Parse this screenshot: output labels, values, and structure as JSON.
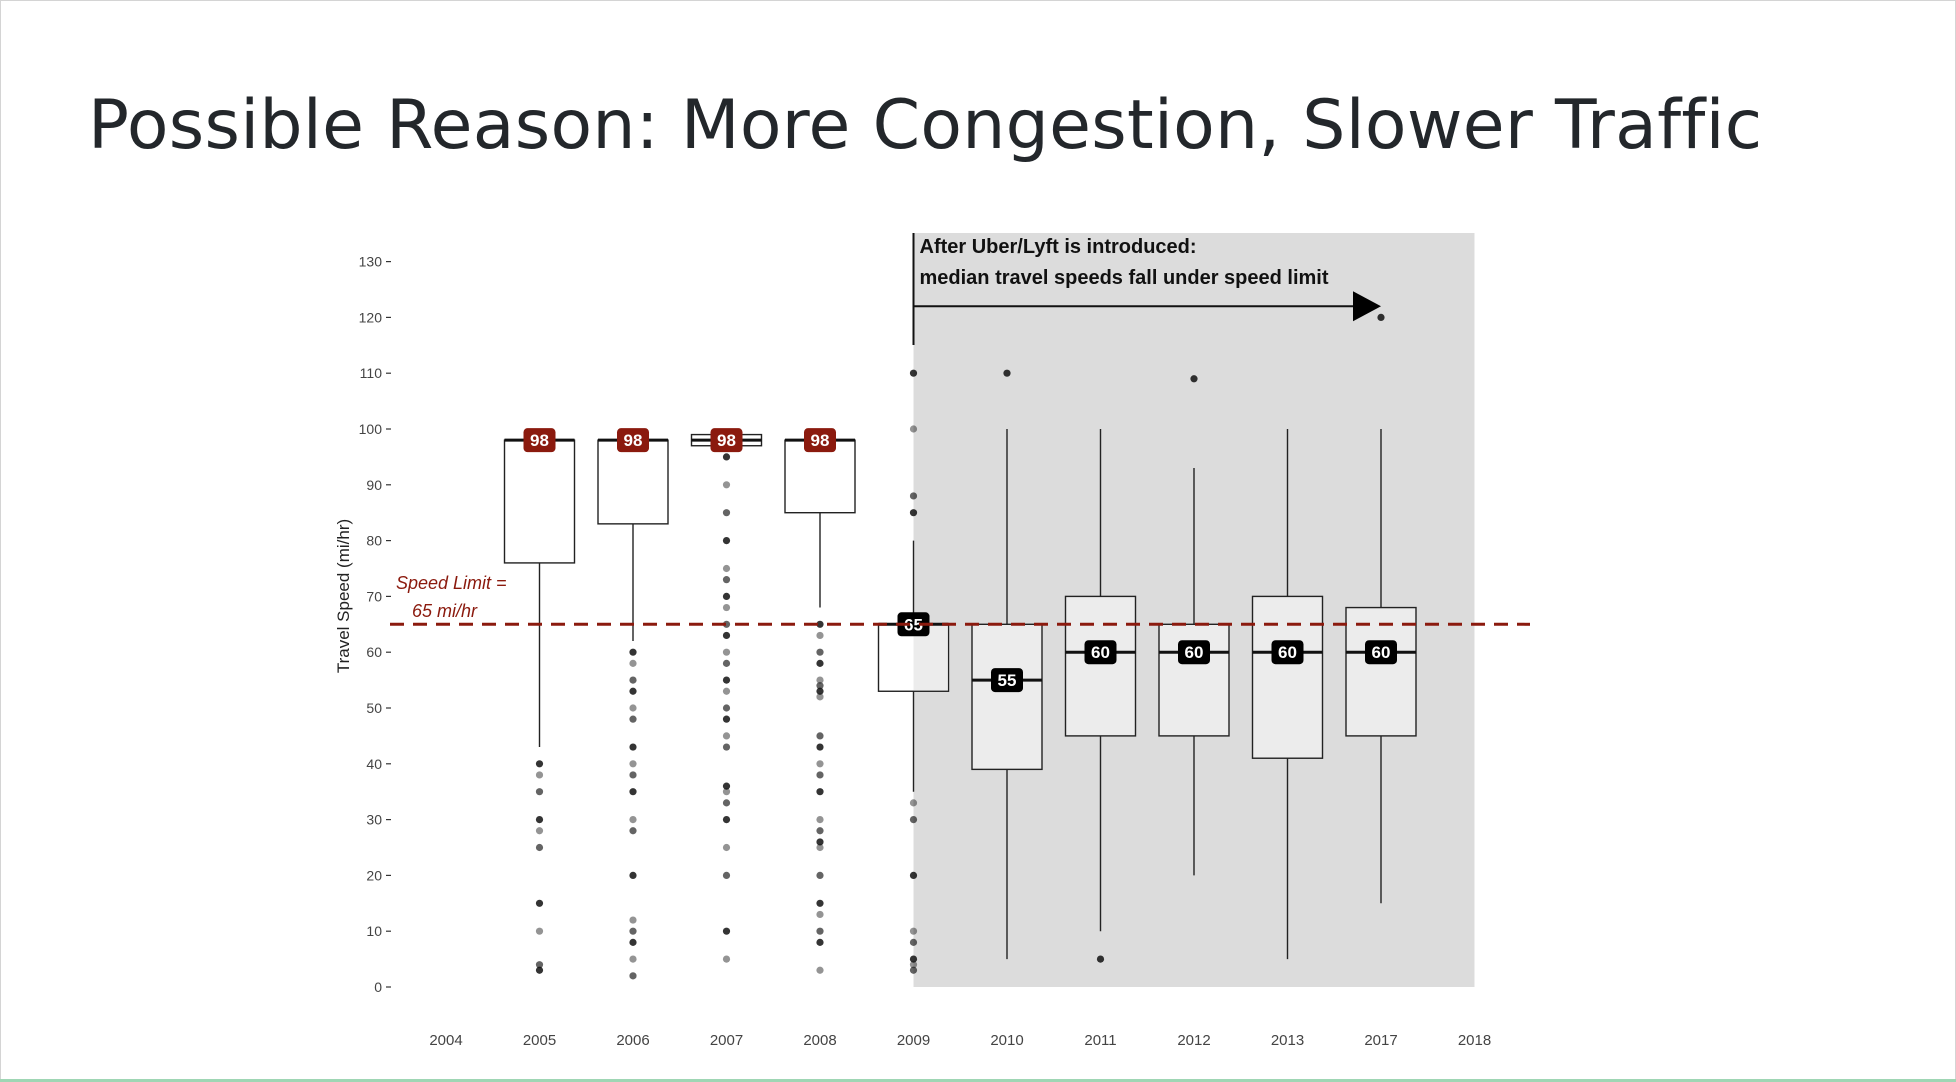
{
  "slide": {
    "title": "Possible Reason: More Congestion, Slower Traffic"
  },
  "chart_data": {
    "type": "boxplot",
    "title": "",
    "xlabel": "",
    "ylabel": "Travel Speed (mi/hr)",
    "ylim": [
      0,
      130
    ],
    "y_ticks": [
      0,
      10,
      20,
      30,
      40,
      50,
      60,
      70,
      80,
      90,
      100,
      110,
      120,
      130
    ],
    "x_ticks": [
      "2004",
      "2005",
      "2006",
      "2007",
      "2008",
      "2009",
      "2010",
      "2011",
      "2012",
      "2013",
      "2017",
      "2018"
    ],
    "boxes": [
      {
        "x": "2005",
        "q1": 76,
        "median": 98,
        "q3": 98,
        "whisker_low": 43,
        "whisker_high": 98,
        "median_label": "98",
        "label_style": "above",
        "outliers": [
          40,
          38,
          35,
          30,
          28,
          25,
          15,
          10,
          4,
          3
        ]
      },
      {
        "x": "2006",
        "q1": 83,
        "median": 98,
        "q3": 98,
        "whisker_low": 62,
        "whisker_high": 98,
        "median_label": "98",
        "label_style": "above",
        "outliers": [
          60,
          58,
          55,
          53,
          50,
          48,
          43,
          40,
          38,
          35,
          30,
          28,
          20,
          12,
          10,
          8,
          5,
          2
        ]
      },
      {
        "x": "2007",
        "q1": 97,
        "median": 98,
        "q3": 99,
        "whisker_low": 97,
        "whisker_high": 99,
        "median_label": "98",
        "label_style": "above",
        "outliers": [
          95,
          90,
          85,
          80,
          75,
          73,
          70,
          68,
          65,
          63,
          60,
          58,
          55,
          53,
          50,
          48,
          45,
          43,
          36,
          35,
          33,
          30,
          25,
          20,
          10,
          5
        ]
      },
      {
        "x": "2008",
        "q1": 85,
        "median": 98,
        "q3": 98,
        "whisker_low": 68,
        "whisker_high": 98,
        "median_label": "98",
        "label_style": "above",
        "outliers": [
          65,
          63,
          60,
          58,
          55,
          54,
          53,
          52,
          45,
          43,
          40,
          38,
          35,
          30,
          28,
          26,
          25,
          20,
          15,
          13,
          10,
          8,
          3
        ]
      },
      {
        "x": "2009",
        "q1": 53,
        "median": 65,
        "q3": 65,
        "whisker_low": 35,
        "whisker_high": 80,
        "median_label": "65",
        "label_style": "dark",
        "outliers": [
          110,
          100,
          88,
          85,
          33,
          30,
          20,
          10,
          8,
          5,
          4,
          3
        ]
      },
      {
        "x": "2010",
        "q1": 39,
        "median": 55,
        "q3": 65,
        "whisker_low": 5,
        "whisker_high": 100,
        "median_label": "55",
        "label_style": "dark",
        "outliers": [
          110
        ]
      },
      {
        "x": "2011",
        "q1": 45,
        "median": 60,
        "q3": 70,
        "whisker_low": 10,
        "whisker_high": 100,
        "median_label": "60",
        "label_style": "dark",
        "outliers": [
          5
        ]
      },
      {
        "x": "2012",
        "q1": 45,
        "median": 60,
        "q3": 65,
        "whisker_low": 20,
        "whisker_high": 93,
        "median_label": "60",
        "label_style": "dark",
        "outliers": [
          109
        ]
      },
      {
        "x": "2013",
        "q1": 41,
        "median": 60,
        "q3": 70,
        "whisker_low": 5,
        "whisker_high": 100,
        "median_label": "60",
        "label_style": "dark",
        "outliers": []
      },
      {
        "x": "2017",
        "q1": 45,
        "median": 60,
        "q3": 68,
        "whisker_low": 15,
        "whisker_high": 100,
        "median_label": "60",
        "label_style": "dark",
        "outliers": [
          120
        ]
      }
    ],
    "reference_line": {
      "y": 65,
      "style": "dashed",
      "color": "#8b1a0e",
      "label_line1": "Speed Limit =",
      "label_line2": "65 mi/hr"
    },
    "shaded_region": {
      "x_from": "2009",
      "x_to": "2018",
      "color": "#dcdcdc"
    },
    "annotation": {
      "line1": "After Uber/Lyft is introduced:",
      "line2": "median travel speeds fall under speed limit",
      "arrow_from": "2009",
      "arrow_to": "2017",
      "arrow_y": 122
    },
    "colors": {
      "pre_label_bg": "#8b1a0e",
      "post_label_bg": "#000000",
      "grid": false
    }
  }
}
